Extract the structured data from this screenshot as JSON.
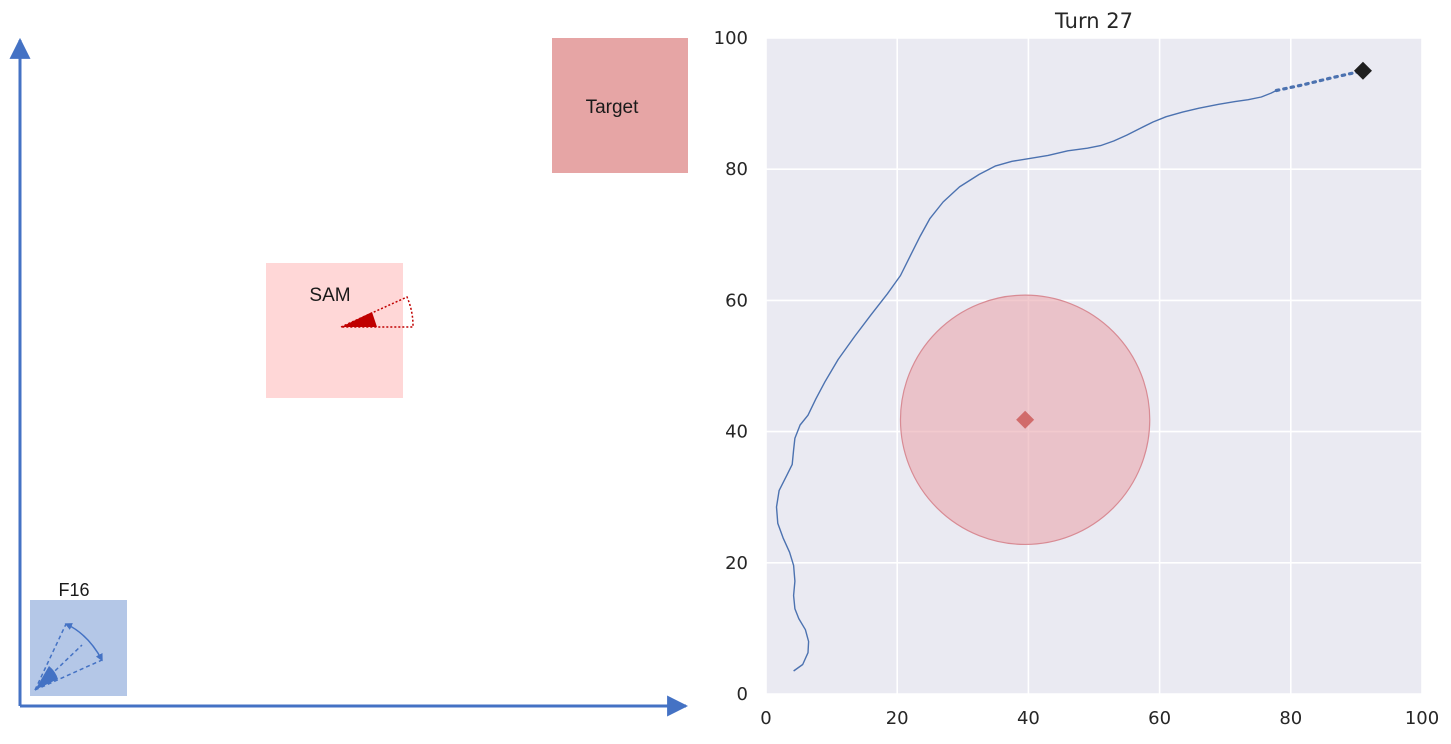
{
  "scenario": {
    "f16": {
      "label": "F16",
      "fill": "#b4c7e7",
      "accent": "#4472c4",
      "icon": "f16-sensor-sweep-icon"
    },
    "sam": {
      "label": "SAM",
      "fill": "#ffd7d7",
      "accent": "#c00000",
      "icon": "sam-radar-sector-icon"
    },
    "target": {
      "label": "Target",
      "fill": "#e6a5a5"
    },
    "axis_color": "#4472c4"
  },
  "chart_data": {
    "type": "line",
    "title": "Turn 27",
    "xlim": [
      0,
      100
    ],
    "ylim": [
      0,
      100
    ],
    "xticks": [
      0,
      20,
      40,
      60,
      80,
      100
    ],
    "yticks": [
      0,
      20,
      40,
      60,
      80,
      100
    ],
    "grid": true,
    "background": "#eaeaf2",
    "series": [
      {
        "kind": "trajectory",
        "color": "#4c72b0",
        "style": "solid",
        "x": [
          4.2,
          5.6,
          6.4,
          6.5,
          6.0,
          5.0,
          4.4,
          4.2,
          4.4,
          4.2,
          3.6,
          2.6,
          1.8,
          1.6,
          2.0,
          3.2,
          4.0,
          4.2,
          4.4,
          5.2,
          6.4,
          7.6,
          9.0,
          11.0,
          13.5,
          16.0,
          18.5,
          20.5,
          22.0,
          23.5,
          25.0,
          27.0,
          29.5,
          32.5,
          35.0,
          37.5,
          40.0,
          43.0,
          46.0,
          49.0,
          51.0,
          53.0,
          55.0,
          57.0,
          59.0,
          61.0,
          63.5,
          66.0,
          69.0,
          71.5,
          73.5,
          75.5,
          77.0,
          77.8
        ],
        "y": [
          3.5,
          4.5,
          6.3,
          8.0,
          9.8,
          11.5,
          13.0,
          15.0,
          17.2,
          19.6,
          21.6,
          23.8,
          26.0,
          28.5,
          31.0,
          33.4,
          35.0,
          37.2,
          39.0,
          41.0,
          42.5,
          45.0,
          47.6,
          51.0,
          54.5,
          57.8,
          61.0,
          63.8,
          66.8,
          69.8,
          72.5,
          75.0,
          77.3,
          79.2,
          80.5,
          81.2,
          81.6,
          82.1,
          82.8,
          83.2,
          83.6,
          84.3,
          85.2,
          86.2,
          87.2,
          88.0,
          88.7,
          89.3,
          89.9,
          90.3,
          90.6,
          91.0,
          91.6,
          92.0
        ]
      },
      {
        "kind": "planned",
        "color": "#4c72b0",
        "style": "dotted",
        "x": [
          77.8,
          82.0,
          86.5,
          91.0
        ],
        "y": [
          92.0,
          92.9,
          94.0,
          95.0
        ]
      }
    ],
    "markers": [
      {
        "kind": "aircraft",
        "shape": "diamond",
        "x": 91.0,
        "y": 95.0,
        "color": "#1f1f1f"
      },
      {
        "kind": "sam",
        "shape": "diamond",
        "x": 39.5,
        "y": 41.8,
        "color": "#d16b6b"
      }
    ],
    "threat_zone": {
      "cx": 39.5,
      "cy": 41.8,
      "r": 19.0,
      "fill": "#e9a6ad",
      "opacity": 0.6,
      "edge": "#d88b94"
    }
  }
}
